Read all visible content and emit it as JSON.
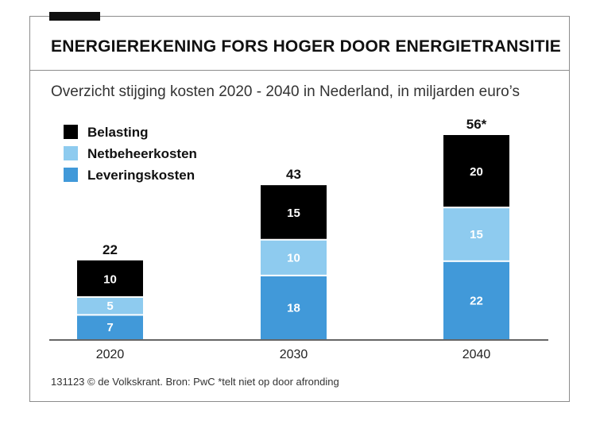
{
  "title": "ENERGIEREKENING FORS HOGER DOOR ENERGIETRANSITIE",
  "subtitle": "Overzicht stijging kosten 2020 - 2040 in Nederland, in miljarden euro’s",
  "footer": "131123 © de Volkskrant. Bron: PwC *telt niet op door afronding",
  "chart_data": {
    "type": "bar",
    "stacked": true,
    "categories": [
      "2020",
      "2030",
      "2040"
    ],
    "series": [
      {
        "name": "Leveringskosten",
        "values": [
          7,
          18,
          22
        ],
        "color": "#4199d9",
        "label_color": "#ffffff"
      },
      {
        "name": "Netbeheerkosten",
        "values": [
          5,
          10,
          15
        ],
        "color": "#8ecbef",
        "label_color": "#ffffff"
      },
      {
        "name": "Belasting",
        "values": [
          10,
          15,
          20
        ],
        "color": "#000000",
        "label_color": "#ffffff"
      }
    ],
    "totals": [
      "22",
      "43",
      "56*"
    ],
    "legend_order": [
      "Belasting",
      "Netbeheerkosten",
      "Leveringskosten"
    ],
    "legend_position": "top-left",
    "ylim": [
      0,
      57
    ],
    "grid": false,
    "xlabel": "",
    "ylabel": ""
  }
}
